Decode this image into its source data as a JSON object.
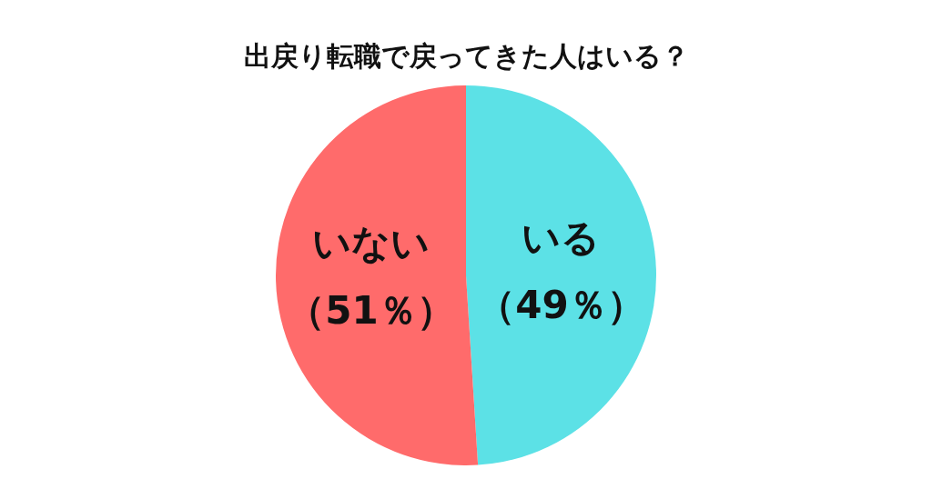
{
  "chart_data": {
    "type": "pie",
    "title": "出戻り転職で戻ってきた人はいる？",
    "categories": [
      "いる",
      "いない"
    ],
    "values": [
      49,
      51
    ],
    "colors": [
      "#5ce1e6",
      "#ff6b6b"
    ],
    "value_labels": [
      "（49％）",
      "（51％）"
    ]
  }
}
